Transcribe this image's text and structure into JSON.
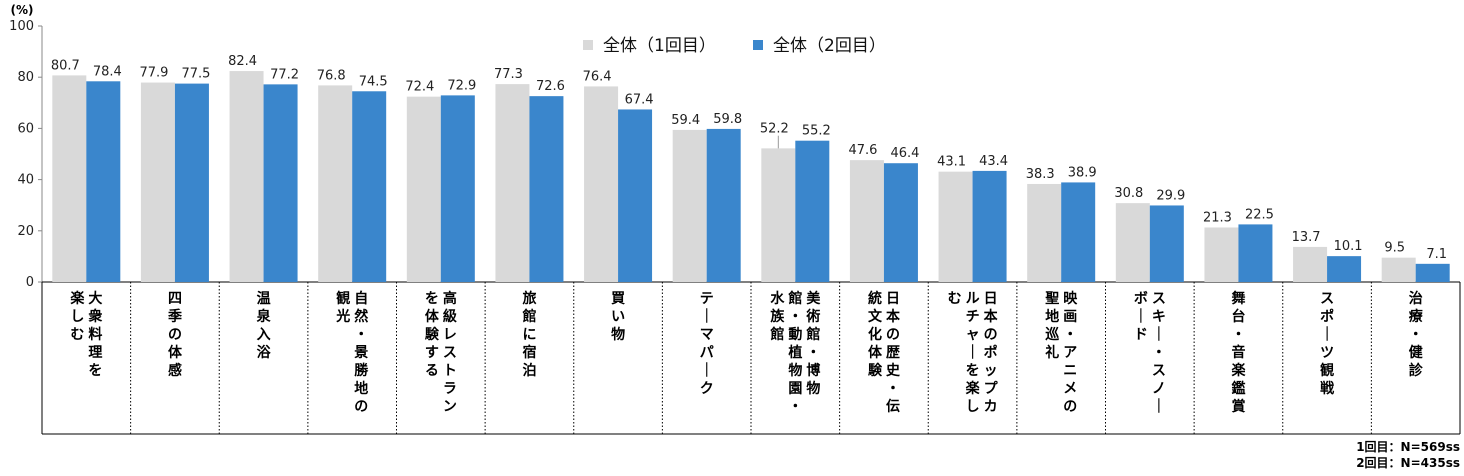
{
  "chart_data": {
    "type": "bar",
    "unit_label": "(%)",
    "ylim": [
      0,
      100
    ],
    "yticks": [
      0,
      20,
      40,
      60,
      80,
      100
    ],
    "categories": [
      [
        "楽しむ",
        "大衆料理を"
      ],
      [
        "四季の体感"
      ],
      [
        "温泉入浴"
      ],
      [
        "観光",
        "自然・景勝地の"
      ],
      [
        "を体験する",
        "高級レストラン"
      ],
      [
        "旅館に宿泊"
      ],
      [
        "買い物"
      ],
      [
        "テーマパーク"
      ],
      [
        "水族館",
        "館・動植物園・",
        "美術館・博物"
      ],
      [
        "統文化体験",
        "日本の歴史・伝"
      ],
      [
        "む",
        "ルチャーを楽し",
        "日本のポップカ"
      ],
      [
        "聖地巡礼",
        "映画・アニメの"
      ],
      [
        "ボード",
        "スキー・スノー"
      ],
      [
        "舞台・音楽鑑賞"
      ],
      [
        "スポーツ観戦"
      ],
      [
        "治療・健診"
      ]
    ],
    "series": [
      {
        "name": "全体（1回目）",
        "color": "#d9d9d9",
        "values": [
          80.7,
          77.9,
          82.4,
          76.8,
          72.4,
          77.3,
          76.4,
          59.4,
          52.2,
          47.6,
          43.1,
          38.3,
          30.8,
          21.3,
          13.7,
          9.5
        ]
      },
      {
        "name": "全体（2回目）",
        "color": "#3a86cc",
        "values": [
          78.4,
          77.5,
          77.2,
          74.5,
          72.9,
          72.6,
          67.4,
          59.8,
          55.2,
          46.4,
          43.4,
          38.9,
          29.9,
          22.5,
          10.1,
          7.1
        ]
      }
    ],
    "notes": [
      "1回目：N=569ss",
      "2回目：N=435ss"
    ],
    "grid": false,
    "legend_position": "top-center"
  }
}
